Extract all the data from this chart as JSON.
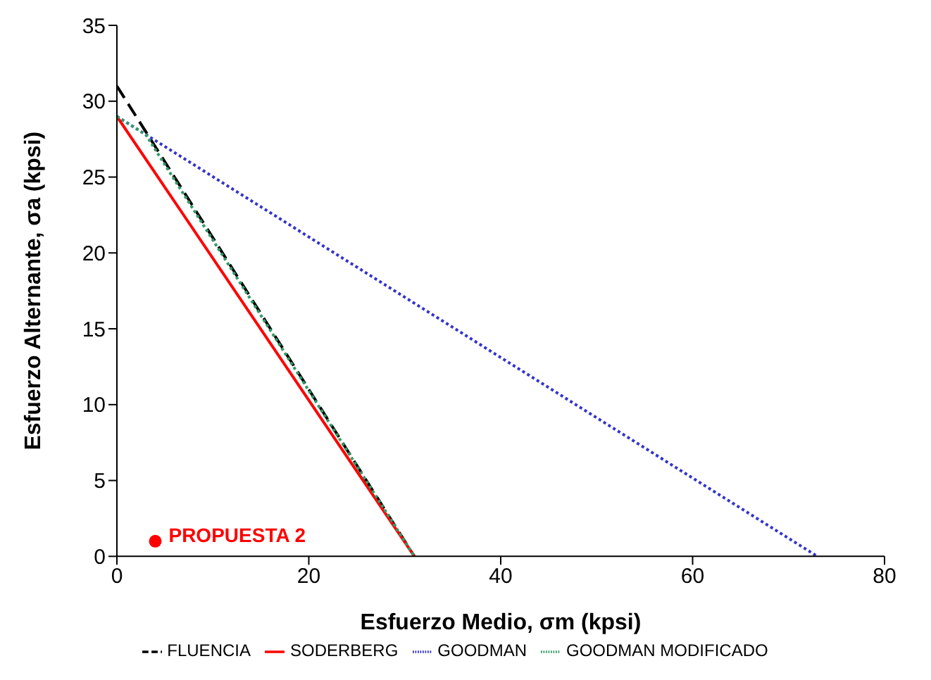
{
  "chart_data": {
    "type": "line",
    "xlabel": "Esfuerzo Medio, σm (kpsi)",
    "ylabel": "Esfuerzo Alternante, σa (kpsi)",
    "xlim": [
      0,
      80
    ],
    "xticks": [
      0,
      20,
      40,
      60,
      80
    ],
    "ylim": [
      0,
      35
    ],
    "yticks": [
      0,
      5,
      10,
      15,
      20,
      25,
      30,
      35
    ],
    "grid": false,
    "legend": "bottom",
    "marker": "none",
    "series": [
      {
        "name": "FLUENCIA",
        "color": "#000000",
        "line_style": "dashed",
        "x": [
          0,
          31
        ],
        "values": [
          31,
          0
        ]
      },
      {
        "name": "SODERBERG",
        "color": "#ff0000",
        "line_style": "solid",
        "x": [
          0,
          31
        ],
        "values": [
          29,
          0
        ]
      },
      {
        "name": "GOODMAN",
        "color": "#3333cc",
        "line_style": "dotted",
        "x": [
          0,
          73
        ],
        "values": [
          29,
          0
        ]
      },
      {
        "name": "GOODMAN MODIFICADO",
        "color": "#339966",
        "line_style": "dotted",
        "x": [
          0,
          3,
          31
        ],
        "values": [
          29,
          27.8,
          0
        ]
      },
      {
        "name": "PROPUESTA 2",
        "type": "scatter",
        "color": "#ff0000",
        "marker": "circle",
        "x": [
          4
        ],
        "values": [
          1
        ]
      }
    ]
  }
}
